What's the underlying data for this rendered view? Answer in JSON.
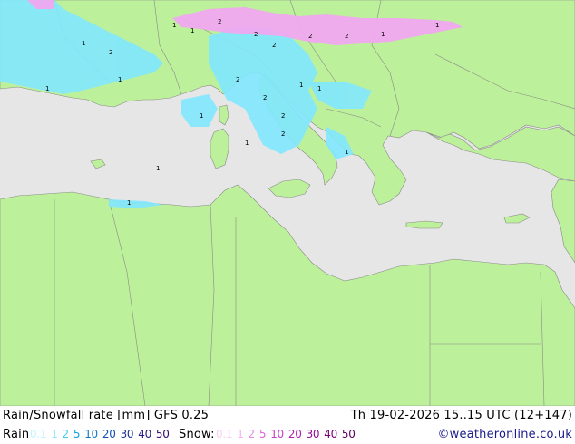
{
  "header": {
    "title": "Rain/Snowfall rate [mm] GFS 0.25",
    "datetime": "Th 19-02-2026 15..15 UTC (12+147)"
  },
  "legend": {
    "rain_label": "Rain",
    "rain_values": [
      "0.1",
      "1",
      "2",
      "5",
      "10",
      "20",
      "30",
      "40",
      "50"
    ],
    "rain_colors": [
      "#c0f5ff",
      "#8ce6ff",
      "#46c8f0",
      "#14a0dc",
      "#1478c8",
      "#1450b4",
      "#1e3296",
      "#281e82",
      "#320a6e"
    ],
    "snow_label": "Snow:",
    "snow_values": [
      "0.1",
      "1",
      "2",
      "5",
      "10",
      "20",
      "30",
      "40",
      "50"
    ],
    "snow_colors": [
      "#f5d2f5",
      "#f0b4f0",
      "#e68ce6",
      "#dc64dc",
      "#c83cc8",
      "#b41eb4",
      "#960a96",
      "#780078",
      "#5a005a"
    ]
  },
  "credit": "©weatheronline.co.uk",
  "colors": {
    "sea": "#e6e6e6",
    "land": "#bdf09a",
    "border": "#808080",
    "rain": "#82e8ff",
    "snow": "#f0a8f0"
  },
  "markers": [
    "1",
    "2"
  ]
}
